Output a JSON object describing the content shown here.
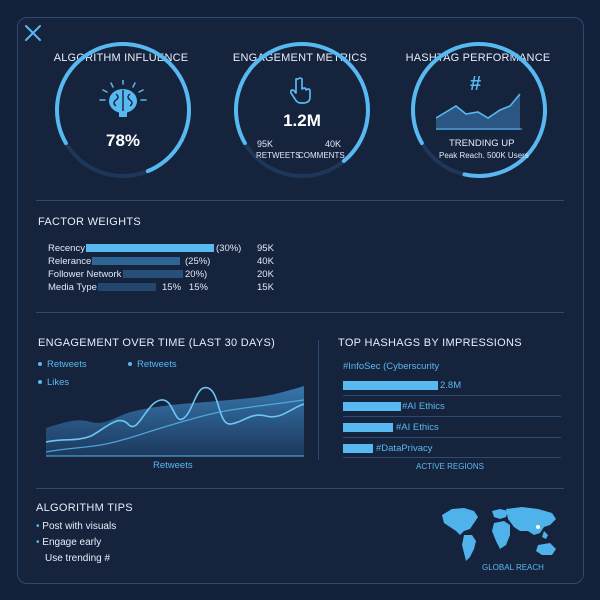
{
  "gauges": {
    "influence": {
      "title": "ALGORITHM INFLUENCE",
      "value": "78%",
      "icon": "brain-icon"
    },
    "engagement": {
      "title": "ENGAGEMENT METRICS",
      "value": "1.2M",
      "icon": "pointer-hand-icon",
      "left_num": "95K",
      "left_label": "RETWEETS",
      "right_num": "40K",
      "right_label": "COMMENTS"
    },
    "hashtag": {
      "title": "HASHTAG PERFORMANCE",
      "icon": "hashtag-icon",
      "status": "TRENDING UP",
      "detail": "Peak Reach. 500K Users"
    }
  },
  "factors": {
    "title": "FACTOR WEIGHTS",
    "rows": [
      {
        "label": "Recency",
        "pct": "(30%)",
        "count": "95K",
        "weight": 30
      },
      {
        "label": "Relerance",
        "pct": "(25%)",
        "count": "40K",
        "weight": 25
      },
      {
        "label": "Follower Network",
        "pct": "20%)",
        "count": "20K",
        "weight": 20
      },
      {
        "label": "Media Type",
        "pct": "15%   15%",
        "count": "15K",
        "weight": 15
      }
    ]
  },
  "engagement_chart": {
    "title": "ENGAGEMENT OVER TIME (LAST 30 DAYS)",
    "legend": [
      "Retweets",
      "Retweets",
      "Likes"
    ],
    "xlabel": "Retweets"
  },
  "hashtags": {
    "title": "TOP HASHAGS BY IMPRESSIONS",
    "header": "#InfoSec (Cyberscurity",
    "rows": [
      {
        "label": "2.8M"
      },
      {
        "label": "#AI Ethics"
      },
      {
        "label": "#AI Ethics"
      },
      {
        "label": "#DataPrivacy"
      }
    ],
    "footer": "ACTIVE REGIONS"
  },
  "tips": {
    "title": "ALGORITHM TIPS",
    "items": [
      "Post with visuals",
      "Engage early",
      "Use trending #"
    ]
  },
  "map": {
    "label": "GLOBAL REACH"
  },
  "colors": {
    "accent": "#58b9f0",
    "background": "#13203a",
    "panel": "#16233d"
  }
}
